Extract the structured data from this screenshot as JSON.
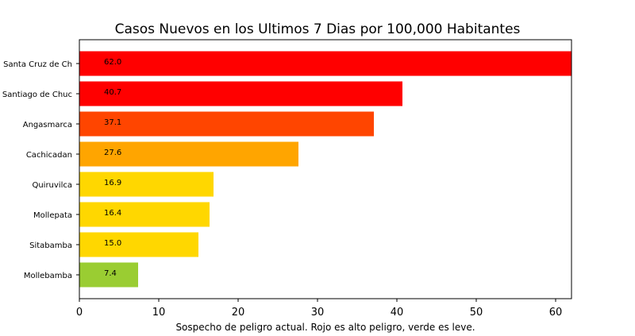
{
  "chart_data": {
    "type": "bar",
    "orientation": "horizontal",
    "title": "Casos Nuevos en los Ultimos 7 Dias por 100,000 Habitantes",
    "xlabel": "Sospecho de peligro actual. Rojo es alto peligro, verde es leve.",
    "ylabel": "",
    "xlim": [
      0,
      62
    ],
    "xticks": [
      0,
      10,
      20,
      30,
      40,
      50,
      60
    ],
    "categories": [
      "Santa Cruz de Ch",
      "Santiago de Chuc",
      "Angasmarca",
      "Cachicadan",
      "Quiruvilca",
      "Mollepata",
      "Sitabamba",
      "Mollebamba"
    ],
    "values": [
      62.0,
      40.7,
      37.1,
      27.6,
      16.9,
      16.4,
      15.0,
      7.4
    ],
    "labels": [
      "62.0",
      "40.7",
      "37.1",
      "27.6",
      "16.9",
      "16.4",
      "15.0",
      "7.4"
    ],
    "colors": [
      "#ff0000",
      "#ff0000",
      "#ff4500",
      "#ffa500",
      "#ffd700",
      "#ffd700",
      "#ffd700",
      "#9acd32"
    ],
    "grid": false
  }
}
